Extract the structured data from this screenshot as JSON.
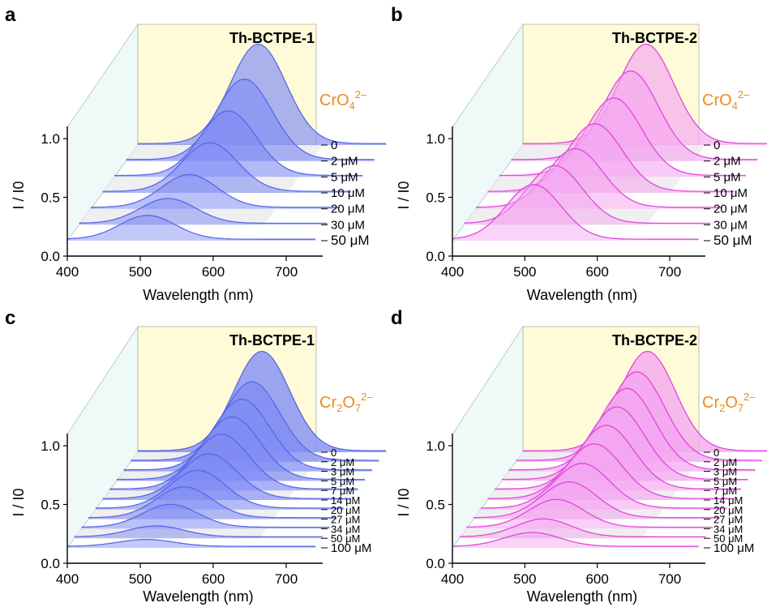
{
  "colors": {
    "blue_fill": "#7f8cf4",
    "blue_line": "#5a67e6",
    "magenta_fill": "#f4a6f0",
    "magenta_line": "#e146dd",
    "back_wall": "#fffbd9",
    "side_wall": "#eef9f8",
    "floor_band": "#efefef",
    "ion_label": "#ef8a1c"
  },
  "chart_data": [
    {
      "type": "area",
      "panel": "a",
      "title": "Th-BCTPE-1",
      "xlabel": "Wavelength (nm)",
      "ylabel": "I / I0",
      "xlim": [
        400,
        750
      ],
      "ylim": [
        0,
        1.1
      ],
      "xticks": [
        "400",
        "500",
        "600",
        "700"
      ],
      "yticks": [
        "0.0",
        "0.5",
        "1.0"
      ],
      "ion_main": "CrO",
      "ion_sub": "4",
      "ion_sup": "2–",
      "color": "blue",
      "series": [
        {
          "name": "0",
          "peak_nm": 565,
          "intensity": 1.0
        },
        {
          "name": "2 μM",
          "peak_nm": 562,
          "intensity": 0.81
        },
        {
          "name": "5 μM",
          "peak_nm": 556,
          "intensity": 0.65
        },
        {
          "name": "10 μM",
          "peak_nm": 547,
          "intensity": 0.49
        },
        {
          "name": "20 μM",
          "peak_nm": 535,
          "intensity": 0.33
        },
        {
          "name": "30 μM",
          "peak_nm": 522,
          "intensity": 0.25
        },
        {
          "name": "50 μM",
          "peak_nm": 510,
          "intensity": 0.24
        }
      ]
    },
    {
      "type": "area",
      "panel": "b",
      "title": "Th-BCTPE-2",
      "xlabel": "Wavelength (nm)",
      "ylabel": "I / I0",
      "xlim": [
        400,
        750
      ],
      "ylim": [
        0,
        1.1
      ],
      "xticks": [
        "400",
        "500",
        "600",
        "700"
      ],
      "yticks": [
        "0.0",
        "0.5",
        "1.0"
      ],
      "ion_main": "CrO",
      "ion_sub": "4",
      "ion_sup": "2–",
      "color": "magenta",
      "series": [
        {
          "name": "0",
          "peak_nm": 570,
          "intensity": 1.0
        },
        {
          "name": "2 μM",
          "peak_nm": 565,
          "intensity": 0.89
        },
        {
          "name": "5 μM",
          "peak_nm": 558,
          "intensity": 0.78
        },
        {
          "name": "10 μM",
          "peak_nm": 548,
          "intensity": 0.68
        },
        {
          "name": "20 μM",
          "peak_nm": 537,
          "intensity": 0.59
        },
        {
          "name": "30 μM",
          "peak_nm": 525,
          "intensity": 0.58
        },
        {
          "name": "50 μM",
          "peak_nm": 512,
          "intensity": 0.55
        }
      ]
    },
    {
      "type": "area",
      "panel": "c",
      "title": "Th-BCTPE-1",
      "xlabel": "Wavelength (nm)",
      "ylabel": "I / I0",
      "xlim": [
        400,
        750
      ],
      "ylim": [
        0,
        1.1
      ],
      "xticks": [
        "400",
        "500",
        "600",
        "700"
      ],
      "yticks": [
        "0.0",
        "0.5",
        "1.0"
      ],
      "ion_main": "Cr",
      "ion_sub": "2",
      "ion_main2": "O",
      "ion_sub2": "7",
      "ion_sup": "2–",
      "color": "blue",
      "series": [
        {
          "name": "0",
          "peak_nm": 570,
          "intensity": 1.0
        },
        {
          "name": "2 μM",
          "peak_nm": 566,
          "intensity": 0.79
        },
        {
          "name": "3 μM",
          "peak_nm": 562,
          "intensity": 0.71
        },
        {
          "name": "5 μM",
          "peak_nm": 558,
          "intensity": 0.63
        },
        {
          "name": "7 μM",
          "peak_nm": 553,
          "intensity": 0.55
        },
        {
          "name": "14 μM",
          "peak_nm": 546,
          "intensity": 0.45
        },
        {
          "name": "20 μM",
          "peak_nm": 540,
          "intensity": 0.38
        },
        {
          "name": "27 μM",
          "peak_nm": 531,
          "intensity": 0.31
        },
        {
          "name": "34 μM",
          "peak_nm": 522,
          "intensity": 0.23
        },
        {
          "name": "50 μM",
          "peak_nm": 512,
          "intensity": 0.11
        },
        {
          "name": "100 μM",
          "peak_nm": 508,
          "intensity": 0.07
        }
      ]
    },
    {
      "type": "area",
      "panel": "d",
      "title": "Th-BCTPE-2",
      "xlabel": "Wavelength (nm)",
      "ylabel": "I / I0",
      "xlim": [
        400,
        750
      ],
      "ylim": [
        0,
        1.1
      ],
      "xticks": [
        "400",
        "500",
        "600",
        "700"
      ],
      "yticks": [
        "0.0",
        "0.5",
        "1.0"
      ],
      "ion_main": "Cr",
      "ion_sub": "2",
      "ion_main2": "O",
      "ion_sub2": "7",
      "ion_sup": "2–",
      "color": "magenta",
      "series": [
        {
          "name": "0",
          "peak_nm": 572,
          "intensity": 1.0
        },
        {
          "name": "2 μM",
          "peak_nm": 567,
          "intensity": 0.89
        },
        {
          "name": "3 μM",
          "peak_nm": 563,
          "intensity": 0.82
        },
        {
          "name": "5 μM",
          "peak_nm": 559,
          "intensity": 0.73
        },
        {
          "name": "7 μM",
          "peak_nm": 554,
          "intensity": 0.64
        },
        {
          "name": "14 μM",
          "peak_nm": 547,
          "intensity": 0.55
        },
        {
          "name": "20 μM",
          "peak_nm": 540,
          "intensity": 0.45
        },
        {
          "name": "27 μM",
          "peak_nm": 532,
          "intensity": 0.36
        },
        {
          "name": "34 μM",
          "peak_nm": 524,
          "intensity": 0.28
        },
        {
          "name": "50 μM",
          "peak_nm": 516,
          "intensity": 0.18
        },
        {
          "name": "100 μM",
          "peak_nm": 510,
          "intensity": 0.14
        }
      ]
    }
  ]
}
